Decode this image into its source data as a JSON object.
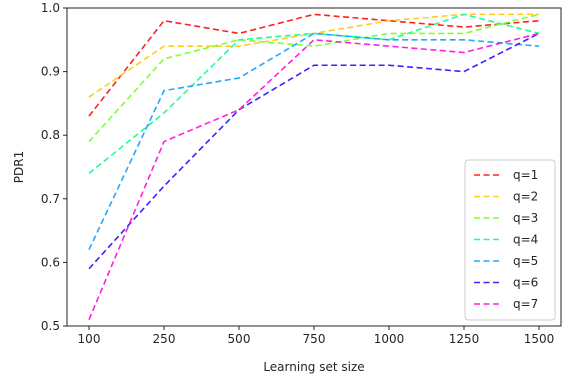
{
  "chart_data": {
    "type": "line",
    "categories": [
      "100",
      "250",
      "500",
      "750",
      "1000",
      "1250",
      "1500"
    ],
    "xlabel": "Learning set size",
    "ylabel": "PDR1",
    "ylim": [
      0.5,
      1.0
    ],
    "yticks": [
      "0.5",
      "0.6",
      "0.7",
      "0.8",
      "0.9",
      "1.0"
    ],
    "grid": false,
    "legend_position": "lower-right",
    "line_style": "dashed",
    "series": [
      {
        "name": "q=1",
        "color": "#ff2020",
        "values": [
          0.83,
          0.98,
          0.96,
          0.99,
          0.98,
          0.97,
          0.98
        ]
      },
      {
        "name": "q=2",
        "color": "#ffcc20",
        "values": [
          0.86,
          0.94,
          0.94,
          0.96,
          0.98,
          0.99,
          0.99
        ]
      },
      {
        "name": "q=3",
        "color": "#80ff30",
        "values": [
          0.79,
          0.92,
          0.95,
          0.94,
          0.96,
          0.96,
          0.99
        ]
      },
      {
        "name": "q=4",
        "color": "#20ff90",
        "values": [
          0.74,
          0.835,
          0.95,
          0.96,
          0.95,
          0.99,
          0.96
        ]
      },
      {
        "name": "q=5",
        "color": "#20a8ff",
        "values": [
          0.62,
          0.87,
          0.89,
          0.96,
          0.95,
          0.95,
          0.94
        ]
      },
      {
        "name": "q=6",
        "color": "#4020ff",
        "values": [
          0.59,
          0.72,
          0.84,
          0.91,
          0.91,
          0.9,
          0.96
        ]
      },
      {
        "name": "q=7",
        "color": "#ff20e0",
        "values": [
          0.51,
          0.79,
          0.84,
          0.95,
          0.94,
          0.93,
          0.96
        ]
      }
    ]
  }
}
